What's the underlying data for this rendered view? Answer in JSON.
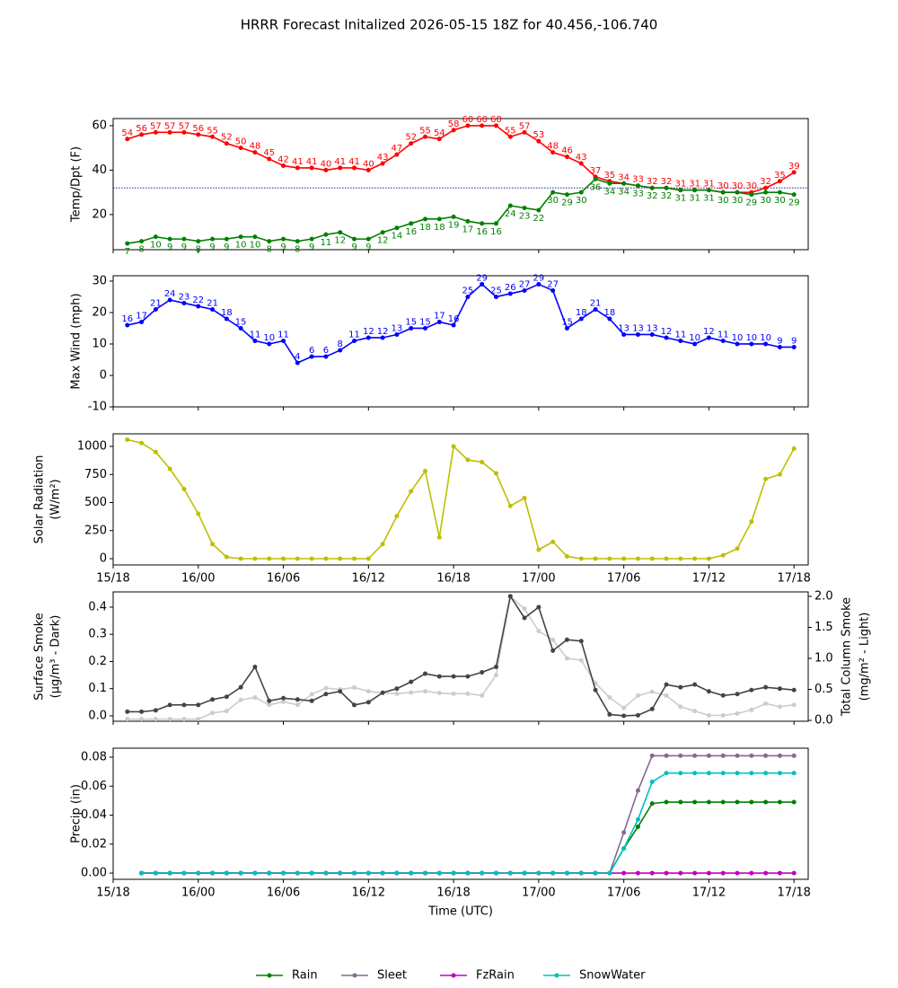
{
  "title": "HRRR Forecast Initalized 2026-05-15 18Z for 40.456,-106.740",
  "chart_data": [
    {
      "type": "line",
      "ylabel": [
        "Temp/Dpt (F)"
      ],
      "data_labels": true,
      "hline": 32,
      "hline_color": "#00008b",
      "x": [
        "15/19",
        "15/20",
        "15/21",
        "15/22",
        "15/23",
        "16/00",
        "16/01",
        "16/02",
        "16/03",
        "16/04",
        "16/05",
        "16/06",
        "16/07",
        "16/08",
        "16/09",
        "16/10",
        "16/11",
        "16/12",
        "16/13",
        "16/14",
        "16/15",
        "16/16",
        "16/17",
        "16/18",
        "16/19",
        "16/20",
        "16/21",
        "16/22",
        "16/23",
        "17/00",
        "17/01",
        "17/02",
        "17/03",
        "17/04",
        "17/05",
        "17/06",
        "17/07",
        "17/08",
        "17/09",
        "17/10",
        "17/11",
        "17/12",
        "17/13",
        "17/14",
        "17/15",
        "17/16",
        "17/17",
        "17/18"
      ],
      "xlim": [
        "15/18",
        "17/19"
      ],
      "xticks": [
        "15/18",
        "16/00",
        "16/06",
        "16/12",
        "16/18",
        "17/00",
        "17/06",
        "17/12",
        "17/18"
      ],
      "ylim": [
        4.2,
        63.2
      ],
      "yticks": [
        20,
        40,
        60
      ],
      "series": [
        {
          "color": "#ff0000",
          "values": [
            54,
            56,
            57,
            57,
            57,
            56,
            55,
            52,
            50,
            48,
            45,
            42,
            41,
            41,
            40,
            41,
            41,
            40,
            43,
            47,
            52,
            55,
            54,
            58,
            60,
            60,
            60,
            55,
            57,
            53,
            48,
            46,
            43,
            37,
            35,
            34,
            33,
            32,
            32,
            31,
            31,
            31,
            30,
            30,
            30,
            32,
            35,
            39
          ]
        },
        {
          "color": "#008000",
          "values": [
            7,
            8,
            10,
            9,
            9,
            8,
            9,
            9,
            10,
            10,
            8,
            9,
            8,
            9,
            11,
            12,
            9,
            9,
            12,
            14,
            16,
            18,
            18,
            19,
            17,
            16,
            16,
            24,
            23,
            22,
            30,
            29,
            30,
            36,
            34,
            34,
            33,
            32,
            32,
            31,
            31,
            31,
            30,
            30,
            29,
            30,
            30,
            29
          ]
        }
      ]
    },
    {
      "type": "line",
      "ylabel": [
        "Max Wind (mph)"
      ],
      "data_labels": true,
      "x": [
        "15/19",
        "15/20",
        "15/21",
        "15/22",
        "15/23",
        "16/00",
        "16/01",
        "16/02",
        "16/03",
        "16/04",
        "16/05",
        "16/06",
        "16/07",
        "16/08",
        "16/09",
        "16/10",
        "16/11",
        "16/12",
        "16/13",
        "16/14",
        "16/15",
        "16/16",
        "16/17",
        "16/18",
        "16/19",
        "16/20",
        "16/21",
        "16/22",
        "16/23",
        "17/00",
        "17/01",
        "17/02",
        "17/03",
        "17/04",
        "17/05",
        "17/06",
        "17/07",
        "17/08",
        "17/09",
        "17/10",
        "17/11",
        "17/12",
        "17/13",
        "17/14",
        "17/15",
        "17/16",
        "17/17",
        "17/18"
      ],
      "xlim": [
        "15/18",
        "17/19"
      ],
      "xticks": [
        "15/18",
        "16/00",
        "16/06",
        "16/12",
        "16/18",
        "17/00",
        "17/06",
        "17/12",
        "17/18"
      ],
      "ylim": [
        -10,
        31.7
      ],
      "yticks": [
        -10,
        0,
        10,
        20,
        30
      ],
      "series": [
        {
          "color": "#0000ff",
          "values": [
            16,
            17,
            21,
            24,
            23,
            22,
            21,
            18,
            15,
            11,
            10,
            11,
            4,
            6,
            6,
            8,
            11,
            12,
            12,
            13,
            15,
            15,
            17,
            16,
            25,
            29,
            25,
            26,
            27,
            29,
            27,
            15,
            18,
            21,
            18,
            13,
            13,
            13,
            12,
            11,
            10,
            12,
            11,
            10,
            10,
            10,
            9,
            9
          ]
        }
      ]
    },
    {
      "type": "line",
      "ylabel": [
        "Solar Radiation",
        "(W/m²)"
      ],
      "xtick_labels": true,
      "x": [
        "15/19",
        "15/20",
        "15/21",
        "15/22",
        "15/23",
        "16/00",
        "16/01",
        "16/02",
        "16/03",
        "16/04",
        "16/05",
        "16/06",
        "16/07",
        "16/08",
        "16/09",
        "16/10",
        "16/11",
        "16/12",
        "16/13",
        "16/14",
        "16/15",
        "16/16",
        "16/17",
        "16/18",
        "16/19",
        "16/20",
        "16/21",
        "16/22",
        "16/23",
        "17/00",
        "17/01",
        "17/02",
        "17/03",
        "17/04",
        "17/05",
        "17/06",
        "17/07",
        "17/08",
        "17/09",
        "17/10",
        "17/11",
        "17/12",
        "17/13",
        "17/14",
        "17/15",
        "17/16",
        "17/17",
        "17/18"
      ],
      "xlim": [
        "15/18",
        "17/19"
      ],
      "xticks": [
        "15/18",
        "16/00",
        "16/06",
        "16/12",
        "16/18",
        "17/00",
        "17/06",
        "17/12",
        "17/18"
      ],
      "ylim": [
        -56,
        1112
      ],
      "yticks": [
        0,
        250,
        500,
        750,
        1000
      ],
      "series": [
        {
          "color": "#bfbf00",
          "values": [
            1060,
            1030,
            950,
            800,
            620,
            400,
            130,
            15,
            0,
            0,
            0,
            0,
            0,
            0,
            0,
            0,
            0,
            0,
            130,
            380,
            600,
            780,
            190,
            1000,
            880,
            860,
            760,
            470,
            540,
            80,
            150,
            20,
            0,
            0,
            0,
            0,
            0,
            0,
            0,
            0,
            0,
            0,
            30,
            90,
            330,
            710,
            750,
            980
          ]
        }
      ]
    },
    {
      "type": "line",
      "ylabel": [
        "Surface Smoke",
        "(μg/m³ - Dark)"
      ],
      "y2label": [
        "Total Column Smoke",
        "(mg/m² - Light)"
      ],
      "x": [
        "15/19",
        "15/20",
        "15/21",
        "15/22",
        "15/23",
        "16/00",
        "16/01",
        "16/02",
        "16/03",
        "16/04",
        "16/05",
        "16/06",
        "16/07",
        "16/08",
        "16/09",
        "16/10",
        "16/11",
        "16/12",
        "16/13",
        "16/14",
        "16/15",
        "16/16",
        "16/17",
        "16/18",
        "16/19",
        "16/20",
        "16/21",
        "16/22",
        "16/23",
        "17/00",
        "17/01",
        "17/02",
        "17/03",
        "17/04",
        "17/05",
        "17/06",
        "17/07",
        "17/08",
        "17/09",
        "17/10",
        "17/11",
        "17/12",
        "17/13",
        "17/14",
        "17/15",
        "17/16",
        "17/17",
        "17/18"
      ],
      "xlim": [
        "15/18",
        "17/19"
      ],
      "xticks": [
        "15/18",
        "16/00",
        "16/06",
        "16/12",
        "16/18",
        "17/00",
        "17/06",
        "17/12",
        "17/18"
      ],
      "ylim": [
        -0.02,
        0.456
      ],
      "yticks": [
        {
          "value": 0,
          "label": "0.0"
        },
        {
          "value": 0.1,
          "label": "0.1"
        },
        {
          "value": 0.2,
          "label": "0.2"
        },
        {
          "value": 0.3,
          "label": "0.3"
        },
        {
          "value": 0.4,
          "label": "0.4"
        }
      ],
      "y2lim": [
        -0.014,
        2.072
      ],
      "y2ticks": [
        {
          "value": 0,
          "label": "0.0"
        },
        {
          "value": 0.5,
          "label": "0.5"
        },
        {
          "value": 1,
          "label": "1.0"
        },
        {
          "value": 1.5,
          "label": "1.5"
        },
        {
          "value": 2,
          "label": "2.0"
        }
      ],
      "series": [
        {
          "color": "#cccccc",
          "axis": "y2",
          "values": [
            0.02,
            0.02,
            0.02,
            0.02,
            0.02,
            0.02,
            0.12,
            0.15,
            0.33,
            0.37,
            0.25,
            0.3,
            0.25,
            0.42,
            0.52,
            0.5,
            0.53,
            0.47,
            0.44,
            0.43,
            0.45,
            0.47,
            0.44,
            0.43,
            0.43,
            0.4,
            0.73,
            2.0,
            1.8,
            1.44,
            1.3,
            1.0,
            0.97,
            0.6,
            0.37,
            0.2,
            0.4,
            0.46,
            0.4,
            0.22,
            0.15,
            0.08,
            0.08,
            0.11,
            0.17,
            0.27,
            0.22,
            0.25
          ]
        },
        {
          "color": "#444444",
          "values": [
            0.015,
            0.015,
            0.02,
            0.04,
            0.04,
            0.04,
            0.06,
            0.07,
            0.105,
            0.18,
            0.055,
            0.065,
            0.06,
            0.055,
            0.08,
            0.09,
            0.04,
            0.05,
            0.085,
            0.1,
            0.125,
            0.155,
            0.145,
            0.145,
            0.145,
            0.16,
            0.18,
            0.44,
            0.36,
            0.4,
            0.24,
            0.28,
            0.275,
            0.095,
            0.005,
            0,
            0.002,
            0.025,
            0.115,
            0.105,
            0.115,
            0.09,
            0.075,
            0.08,
            0.095,
            0.105,
            0.1,
            0.095
          ]
        }
      ]
    },
    {
      "type": "line",
      "ylabel": [
        "Precip (in)"
      ],
      "xlabel": "Time (UTC)",
      "xtick_labels": true,
      "legend": "bottom",
      "x": [
        "15/20",
        "15/21",
        "15/22",
        "15/23",
        "16/00",
        "16/01",
        "16/02",
        "16/03",
        "16/04",
        "16/05",
        "16/06",
        "16/07",
        "16/08",
        "16/09",
        "16/10",
        "16/11",
        "16/12",
        "16/13",
        "16/14",
        "16/15",
        "16/16",
        "16/17",
        "16/18",
        "16/19",
        "16/20",
        "16/21",
        "16/22",
        "16/23",
        "17/00",
        "17/01",
        "17/02",
        "17/03",
        "17/04",
        "17/05",
        "17/06",
        "17/07",
        "17/08",
        "17/09",
        "17/10",
        "17/11",
        "17/12",
        "17/13",
        "17/14",
        "17/15",
        "17/16",
        "17/17",
        "17/18"
      ],
      "xlim": [
        "15/18",
        "17/19"
      ],
      "xticks": [
        "15/18",
        "16/00",
        "16/06",
        "16/12",
        "16/18",
        "17/00",
        "17/06",
        "17/12",
        "17/18"
      ],
      "ylim": [
        -0.0043,
        0.0862
      ],
      "yticks": [
        {
          "value": 0,
          "label": "0.00"
        },
        {
          "value": 0.02,
          "label": "0.02"
        },
        {
          "value": 0.04,
          "label": "0.04"
        },
        {
          "value": 0.06,
          "label": "0.06"
        },
        {
          "value": 0.08,
          "label": "0.08"
        }
      ],
      "series": [
        {
          "name": "Rain",
          "color": "#008000",
          "values": [
            0,
            0,
            0,
            0,
            0,
            0,
            0,
            0,
            0,
            0,
            0,
            0,
            0,
            0,
            0,
            0,
            0,
            0,
            0,
            0,
            0,
            0,
            0,
            0,
            0,
            0,
            0,
            0,
            0,
            0,
            0,
            0,
            0,
            0,
            0.017,
            0.032,
            0.048,
            0.049,
            0.049,
            0.049,
            0.049,
            0.049,
            0.049,
            0.049,
            0.049,
            0.049,
            0.049
          ]
        },
        {
          "name": "Sleet",
          "color": "#86698e",
          "values": [
            0,
            0,
            0,
            0,
            0,
            0,
            0,
            0,
            0,
            0,
            0,
            0,
            0,
            0,
            0,
            0,
            0,
            0,
            0,
            0,
            0,
            0,
            0,
            0,
            0,
            0,
            0,
            0,
            0,
            0,
            0,
            0,
            0,
            0,
            0.028,
            0.057,
            0.081,
            0.081,
            0.081,
            0.081,
            0.081,
            0.081,
            0.081,
            0.081,
            0.081,
            0.081,
            0.081
          ]
        },
        {
          "name": "FzRain",
          "color": "#bf00bf",
          "values": [
            0,
            0,
            0,
            0,
            0,
            0,
            0,
            0,
            0,
            0,
            0,
            0,
            0,
            0,
            0,
            0,
            0,
            0,
            0,
            0,
            0,
            0,
            0,
            0,
            0,
            0,
            0,
            0,
            0,
            0,
            0,
            0,
            0,
            0,
            0,
            0,
            0,
            0,
            0,
            0,
            0,
            0,
            0,
            0,
            0,
            0,
            0
          ]
        },
        {
          "name": "SnowWater",
          "color": "#00bfbf",
          "values": [
            0,
            0,
            0,
            0,
            0,
            0,
            0,
            0,
            0,
            0,
            0,
            0,
            0,
            0,
            0,
            0,
            0,
            0,
            0,
            0,
            0,
            0,
            0,
            0,
            0,
            0,
            0,
            0,
            0,
            0,
            0,
            0,
            0,
            0,
            0.017,
            0.037,
            0.063,
            0.069,
            0.069,
            0.069,
            0.069,
            0.069,
            0.069,
            0.069,
            0.069,
            0.069,
            0.069
          ]
        }
      ]
    }
  ]
}
